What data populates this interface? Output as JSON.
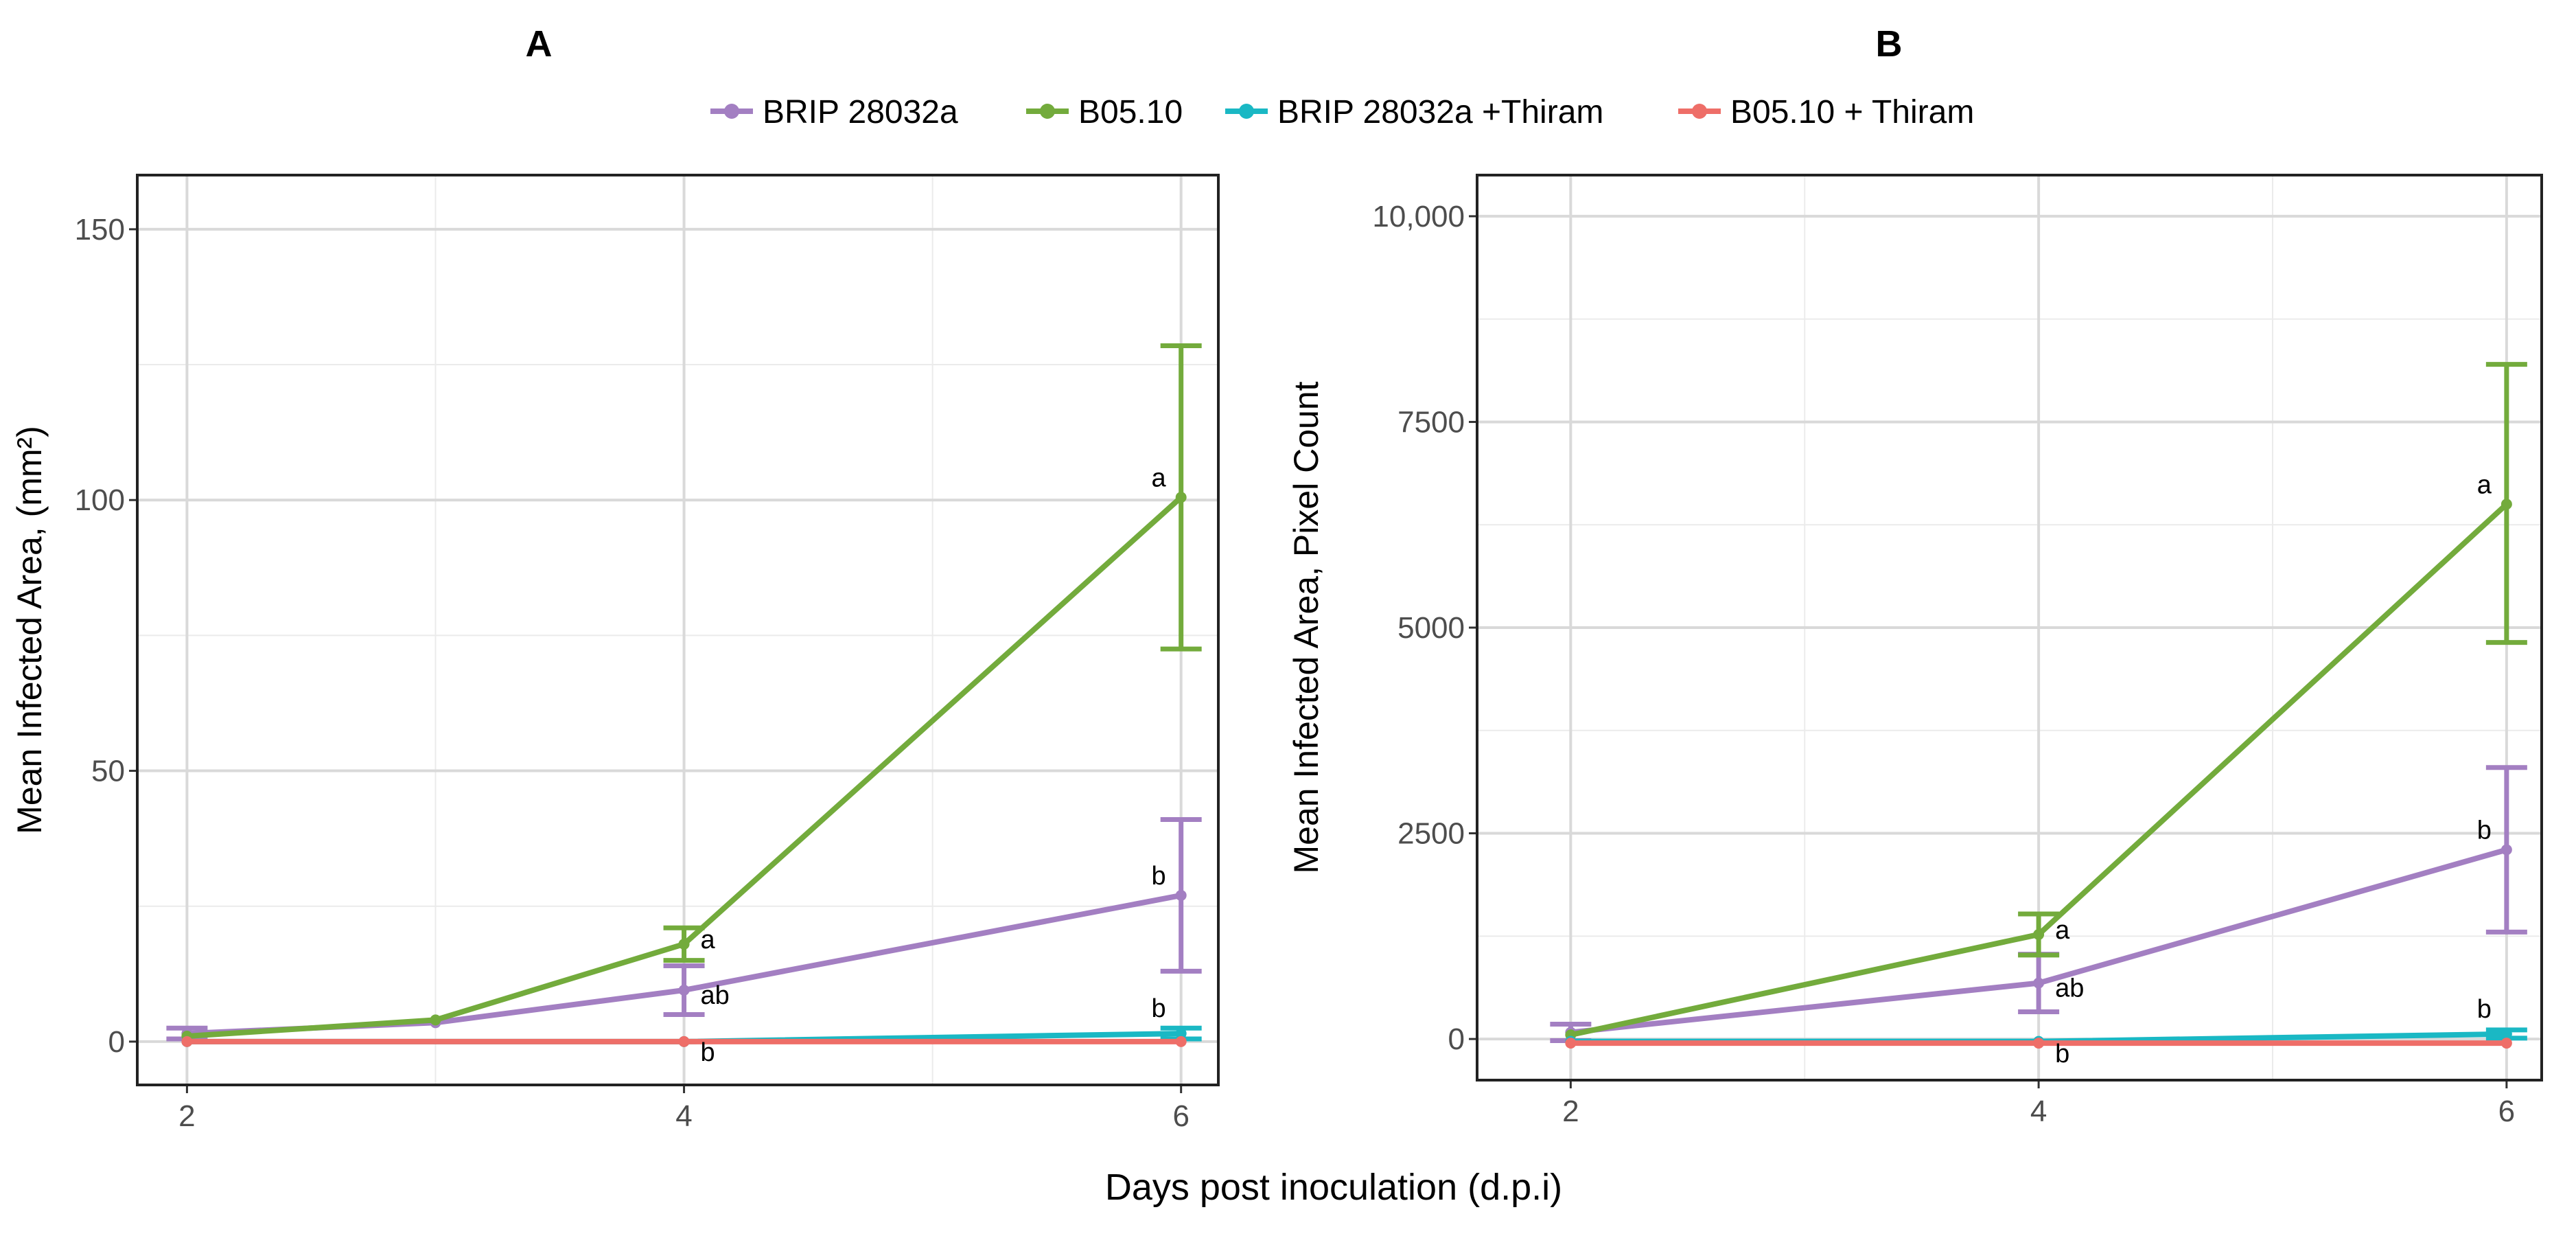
{
  "legend": {
    "items": [
      {
        "label": "BRIP 28032a",
        "color": "#a37fc2"
      },
      {
        "label": "B05.10",
        "color": "#73ab3c"
      },
      {
        "label": "BRIP 28032a +Thiram",
        "color": "#1ab8c4"
      },
      {
        "label": "B05.10 + Thiram",
        "color": "#ee6e68"
      }
    ]
  },
  "xlabel": "Days post inoculation (d.p.i)",
  "chart_data": [
    {
      "type": "line",
      "title": "A",
      "xlabel": "Days post inoculation (d.p.i)",
      "ylabel": "Mean Infected Area, (mm²)",
      "xlim": [
        1.8,
        6.15
      ],
      "ylim": [
        -8,
        160
      ],
      "xticks": [
        2,
        4,
        6
      ],
      "xtick_labels": [
        "2",
        "4",
        "6"
      ],
      "yticks": [
        0,
        50,
        100,
        150
      ],
      "ytick_labels": [
        "0",
        "50",
        "100",
        "150"
      ],
      "grid": true,
      "series": [
        {
          "name": "BRIP 28032a",
          "color": "#a37fc2",
          "x": [
            2,
            3,
            4,
            6
          ],
          "y": [
            1.5,
            3.5,
            9.5,
            27
          ],
          "err_low": [
            0.5,
            null,
            5,
            13
          ],
          "err_high": [
            2.5,
            null,
            14,
            41
          ],
          "labels": [
            null,
            null,
            "ab",
            "b"
          ]
        },
        {
          "name": "B05.10",
          "color": "#73ab3c",
          "x": [
            2,
            3,
            4,
            6
          ],
          "y": [
            1,
            4,
            18,
            100.5
          ],
          "err_low": [
            null,
            null,
            15,
            72.5
          ],
          "err_high": [
            null,
            null,
            21,
            128.5
          ],
          "labels": [
            null,
            null,
            "a",
            "a"
          ]
        },
        {
          "name": "BRIP 28032a +Thiram",
          "color": "#1ab8c4",
          "x": [
            2,
            4,
            6
          ],
          "y": [
            0,
            0,
            1.5
          ],
          "err_low": [
            null,
            null,
            0.5
          ],
          "err_high": [
            null,
            null,
            2.5
          ],
          "labels": [
            null,
            null,
            "b"
          ]
        },
        {
          "name": "B05.10 + Thiram",
          "color": "#ee6e68",
          "x": [
            2,
            4,
            6
          ],
          "y": [
            0,
            0,
            0
          ],
          "err_low": [
            null,
            null,
            null
          ],
          "err_high": [
            null,
            null,
            null
          ],
          "labels": [
            null,
            "b",
            null
          ]
        }
      ]
    },
    {
      "type": "line",
      "title": "B",
      "xlabel": "Days post inoculation (d.p.i)",
      "ylabel": "Mean Infected Area, Pixel Count",
      "xlim": [
        1.6,
        6.15
      ],
      "ylim": [
        -500,
        10500
      ],
      "xticks": [
        2,
        4,
        6
      ],
      "xtick_labels": [
        "2",
        "4",
        "6"
      ],
      "yticks": [
        0,
        2500,
        5000,
        7500,
        10000
      ],
      "ytick_labels": [
        "0",
        "2500",
        "5000",
        "7500",
        "10,000"
      ],
      "grid": true,
      "series": [
        {
          "name": "BRIP 28032a",
          "color": "#a37fc2",
          "x": [
            2,
            4,
            6
          ],
          "y": [
            80,
            680,
            2300
          ],
          "err_low": [
            -20,
            330,
            1300
          ],
          "err_high": [
            180,
            1030,
            3300
          ],
          "labels": [
            null,
            "ab",
            "b"
          ]
        },
        {
          "name": "B05.10",
          "color": "#73ab3c",
          "x": [
            2,
            4,
            6
          ],
          "y": [
            50,
            1270,
            6500
          ],
          "err_low": [
            null,
            1020,
            4820
          ],
          "err_high": [
            null,
            1520,
            8200
          ],
          "labels": [
            null,
            "a",
            "a"
          ]
        },
        {
          "name": "BRIP 28032a +Thiram",
          "color": "#1ab8c4",
          "x": [
            2,
            4,
            6
          ],
          "y": [
            -30,
            -30,
            60
          ],
          "err_low": [
            null,
            null,
            10
          ],
          "err_high": [
            null,
            null,
            110
          ],
          "labels": [
            null,
            null,
            "b"
          ]
        },
        {
          "name": "B05.10 + Thiram",
          "color": "#ee6e68",
          "x": [
            2,
            4,
            6
          ],
          "y": [
            -50,
            -50,
            -50
          ],
          "err_low": [
            null,
            null,
            null
          ],
          "err_high": [
            null,
            null,
            null
          ],
          "labels": [
            null,
            "b",
            null
          ]
        }
      ]
    }
  ]
}
